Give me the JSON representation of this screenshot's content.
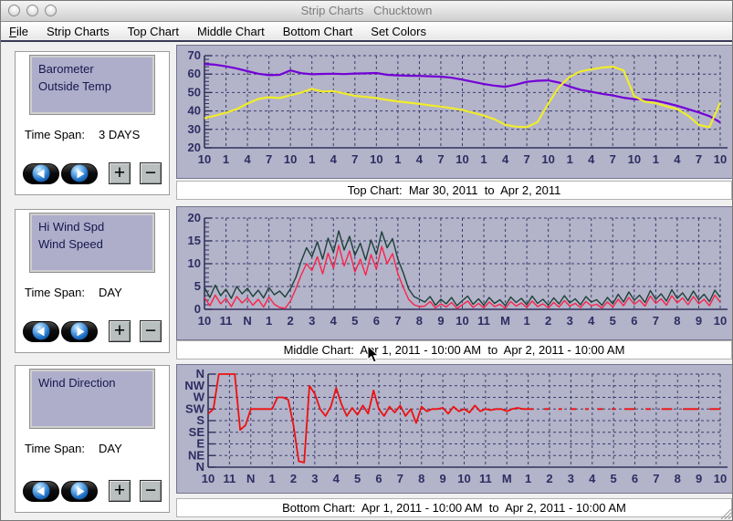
{
  "window": {
    "title": "Strip Charts   Chucktown"
  },
  "menu_bar": {
    "items": [
      "File",
      "Strip Charts",
      "Top Chart",
      "Middle Chart",
      "Bottom Chart",
      "Set Colors"
    ]
  },
  "buttons": {
    "plus": "+",
    "minus": "−"
  },
  "panels": [
    {
      "list_items": [
        "Barometer",
        "Outside Temp"
      ],
      "time_span_label": "Time Span:",
      "time_span_value": "3 DAYS"
    },
    {
      "list_items": [
        "Hi Wind Spd",
        "Wind Speed"
      ],
      "time_span_label": "Time Span:",
      "time_span_value": "DAY"
    },
    {
      "list_items": [
        "Wind Direction"
      ],
      "time_span_label": "Time Span:",
      "time_span_value": "DAY"
    }
  ],
  "colors": {
    "plot_bg": "#b3b3c9",
    "plot_border": "#73738f",
    "grid": "#3c3c6e",
    "axis": "#32325e",
    "tick_text": "#2d2d62",
    "barometer": "#7300d6",
    "outside_temp": "#f0ec2c",
    "hi_wind": "#1c4038",
    "wind_speed": "#fb2349",
    "wind_direction": "#ee1010"
  },
  "chart_data": [
    {
      "type": "line",
      "title": "Top Chart:  Mar 30, 2011  to  Apr 2, 2011",
      "ylim": [
        20,
        70
      ],
      "yticks": [
        20,
        30,
        40,
        50,
        60,
        70
      ],
      "minor": 2,
      "grid": "dashed",
      "x_tick_labels": [
        "10",
        "1",
        "4",
        "7",
        "10",
        "1",
        "4",
        "7",
        "10",
        "1",
        "4",
        "7",
        "10",
        "1",
        "4",
        "7",
        "10",
        "1",
        "4",
        "7",
        "10",
        "1",
        "4",
        "7",
        "10"
      ],
      "series": [
        {
          "name": "Barometer",
          "color": "#7300d6",
          "width": 2.2,
          "values": [
            65.5,
            65.1,
            64.2,
            63.0,
            61.6,
            60.2,
            59.4,
            59.6,
            62.0,
            60.5,
            59.9,
            60.1,
            60.2,
            60.0,
            60.3,
            60.4,
            60.6,
            59.6,
            59.3,
            59.1,
            59.0,
            58.8,
            58.6,
            58.0,
            57.0,
            55.8,
            54.6,
            53.7,
            53.1,
            54.3,
            55.8,
            56.4,
            56.6,
            55.4,
            53.2,
            51.5,
            50.4,
            49.3,
            48.4,
            47.2,
            46.4,
            46.2,
            45.6,
            44.3,
            42.8,
            41.0,
            39.2,
            37.2,
            33.8
          ]
        },
        {
          "name": "Outside Temp",
          "color": "#f0ec2c",
          "width": 2.2,
          "values": [
            36.0,
            37.5,
            39.0,
            41.0,
            44.0,
            46.5,
            47.5,
            47.0,
            48.5,
            50.0,
            52.0,
            50.5,
            50.8,
            49.5,
            48.2,
            47.6,
            47.0,
            46.0,
            45.2,
            44.5,
            43.8,
            43.0,
            42.4,
            41.5,
            40.5,
            39.0,
            37.5,
            35.5,
            32.5,
            31.5,
            31.2,
            34.0,
            44.0,
            53.0,
            58.5,
            61.5,
            62.5,
            63.5,
            64.0,
            62.0,
            48.0,
            45.0,
            44.3,
            42.5,
            41.0,
            37.5,
            32.5,
            31.2,
            44.5
          ]
        }
      ]
    },
    {
      "type": "line",
      "title": "Middle Chart:  Apr 1, 2011 - 10:00 AM  to  Apr 2, 2011 - 10:00 AM",
      "ylim": [
        0,
        20
      ],
      "yticks": [
        0,
        5,
        10,
        15,
        20
      ],
      "minor": 1,
      "grid": "dashed",
      "x_tick_labels": [
        "10",
        "11",
        "N",
        "1",
        "2",
        "3",
        "4",
        "5",
        "6",
        "7",
        "8",
        "9",
        "10",
        "11",
        "M",
        "1",
        "2",
        "3",
        "4",
        "5",
        "6",
        "7",
        "8",
        "9",
        "10"
      ],
      "series": [
        {
          "name": "Hi Wind Spd",
          "color": "#1c4038",
          "width": 1.4,
          "values": [
            4.8,
            2.6,
            5.3,
            3.0,
            4.4,
            2.4,
            5.0,
            3.4,
            4.6,
            2.8,
            4.2,
            2.5,
            4.8,
            3.2,
            4.0,
            2.7,
            4.5,
            7.0,
            10.5,
            13.5,
            11.5,
            14.8,
            11.0,
            15.6,
            12.5,
            17.2,
            13.0,
            16.0,
            11.8,
            14.5,
            10.8,
            15.2,
            12.0,
            17.0,
            13.5,
            15.5,
            11.0,
            8.0,
            4.5,
            2.8,
            2.2,
            1.6,
            2.8,
            0.9,
            2.2,
            1.2,
            2.6,
            0.8,
            1.9,
            2.9,
            1.1,
            2.3,
            0.9,
            2.6,
            1.3,
            2.1,
            0.8,
            2.7,
            1.5,
            2.4,
            1.0,
            2.9,
            1.3,
            2.2,
            0.9,
            2.5,
            1.2,
            3.0,
            1.4,
            2.3,
            1.0,
            2.8,
            1.6,
            2.1,
            0.9,
            2.6,
            1.2,
            3.3,
            1.6,
            3.8,
            2.0,
            3.1,
            1.5,
            4.1,
            2.2,
            3.4,
            1.8,
            4.3,
            2.4,
            3.6,
            1.9,
            4.0,
            2.1,
            3.3,
            1.7,
            4.2,
            2.6
          ]
        },
        {
          "name": "Wind Speed",
          "color": "#fb2349",
          "width": 1.4,
          "values": [
            2.6,
            0.8,
            3.1,
            1.2,
            2.4,
            0.6,
            2.8,
            1.4,
            2.5,
            0.9,
            2.2,
            0.5,
            2.7,
            1.1,
            0.4,
            0.2,
            1.8,
            4.5,
            7.5,
            10.0,
            8.5,
            11.5,
            7.8,
            12.3,
            9.0,
            14.0,
            9.5,
            12.8,
            8.2,
            11.0,
            7.5,
            12.0,
            8.8,
            13.8,
            10.0,
            12.2,
            7.8,
            4.8,
            2.2,
            1.0,
            0.6,
            0.7,
            1.7,
            0.3,
            1.2,
            0.5,
            1.5,
            0.2,
            1.0,
            1.8,
            0.4,
            1.3,
            0.3,
            1.6,
            0.6,
            1.1,
            0.2,
            1.7,
            0.7,
            1.4,
            0.4,
            1.8,
            0.6,
            1.2,
            0.3,
            1.5,
            0.5,
            1.9,
            0.7,
            1.3,
            0.4,
            1.7,
            0.8,
            1.1,
            0.3,
            1.6,
            0.5,
            2.2,
            0.8,
            2.6,
            1.1,
            2.0,
            0.7,
            2.9,
            1.3,
            2.3,
            0.9,
            3.0,
            1.4,
            2.5,
            1.0,
            2.8,
            1.2,
            2.2,
            0.8,
            3.1,
            1.6
          ]
        }
      ]
    },
    {
      "type": "line",
      "title": "Bottom Chart:  Apr 1, 2011 - 10:00 AM  to  Apr 2, 2011 - 10:00 AM",
      "ylim": [
        0,
        8
      ],
      "yticks": [
        0,
        1,
        2,
        3,
        4,
        5,
        6,
        7,
        8
      ],
      "y_tick_labels": [
        "N",
        "NW",
        "W",
        "SW",
        "S",
        "SE",
        "E",
        "NE",
        "N"
      ],
      "minor": 0,
      "grid": "dashed",
      "x_tick_labels": [
        "10",
        "11",
        "N",
        "1",
        "2",
        "3",
        "4",
        "5",
        "6",
        "7",
        "8",
        "9",
        "10",
        "11",
        "M",
        "1",
        "2",
        "3",
        "4",
        "5",
        "6",
        "7",
        "8",
        "9",
        "10"
      ],
      "series": [
        {
          "name": "Wind Direction",
          "color": "#ee1010",
          "width": 1.8,
          "values": [
            4.6,
            5.0,
            8.0,
            8.0,
            8.0,
            8.0,
            3.2,
            3.6,
            5.0,
            5.0,
            5.0,
            5.0,
            5.0,
            6.0,
            6.0,
            5.8,
            3.6,
            0.5,
            0.4,
            7.0,
            6.3,
            5.0,
            4.4,
            5.2,
            6.8,
            5.4,
            4.4,
            5.1,
            4.5,
            5.3,
            4.6,
            6.6,
            5.0,
            4.4,
            5.2,
            4.7,
            5.3,
            4.4,
            5.0,
            3.8,
            5.2,
            4.8,
            5.0,
            5.0,
            5.1,
            4.6,
            5.2,
            4.8,
            5.0,
            4.7,
            5.3,
            4.8,
            5.0,
            4.9,
            5.0,
            5.0,
            4.8,
            5.0,
            5.1,
            5.0,
            5.0,
            5.0,
            null,
            5.0,
            5.0,
            null,
            5.0,
            null,
            5.0,
            5.0,
            null,
            5.0,
            null,
            5.0,
            5.0,
            null,
            5.0,
            null,
            5.0,
            5.0,
            5.0,
            null,
            5.0,
            5.0,
            null,
            5.0,
            5.0,
            5.0,
            null,
            5.0,
            5.0,
            5.0,
            5.0,
            null,
            5.0,
            5.0,
            5.0
          ]
        }
      ]
    }
  ]
}
